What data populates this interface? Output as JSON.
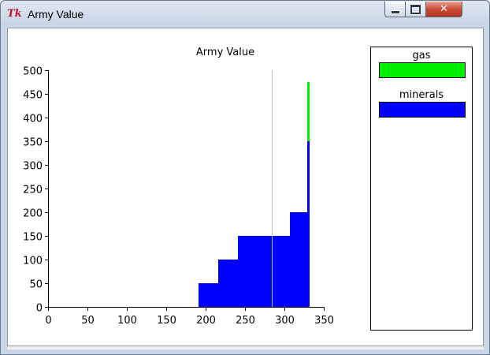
{
  "window": {
    "title": "Army Value",
    "icon": "tk-feather-icon",
    "min_label": "",
    "max_label": "",
    "close_label": "✕"
  },
  "colors": {
    "minerals": "#0000ff",
    "gas": "#00ee00",
    "marker": "#bbbbbb"
  },
  "chart_data": {
    "type": "area",
    "title": "Army Value",
    "xlabel": "",
    "ylabel": "",
    "xlim": [
      0,
      350
    ],
    "ylim": [
      0,
      500
    ],
    "xticks": [
      0,
      50,
      100,
      150,
      200,
      250,
      300,
      350
    ],
    "yticks": [
      0,
      50,
      100,
      150,
      200,
      250,
      300,
      350,
      400,
      450,
      500
    ],
    "grid": false,
    "legend_placement": "right",
    "stacked": true,
    "series": [
      {
        "name": "minerals",
        "color": "#0000ff",
        "steps": [
          {
            "x0": 0,
            "x1": 191,
            "y": 0
          },
          {
            "x0": 191,
            "x1": 216,
            "y": 50
          },
          {
            "x0": 216,
            "x1": 241,
            "y": 100
          },
          {
            "x0": 241,
            "x1": 307,
            "y": 150
          },
          {
            "x0": 307,
            "x1": 329,
            "y": 200
          },
          {
            "x0": 329,
            "x1": 332,
            "y": 350
          }
        ]
      },
      {
        "name": "gas",
        "color": "#00ee00",
        "steps": [
          {
            "x0": 0,
            "x1": 329,
            "y": 0
          },
          {
            "x0": 329,
            "x1": 332,
            "y": 125
          }
        ]
      }
    ],
    "marker_x": 284
  },
  "legend": {
    "items": [
      {
        "label": "gas",
        "color": "#00ee00"
      },
      {
        "label": "minerals",
        "color": "#0000ff"
      }
    ]
  }
}
